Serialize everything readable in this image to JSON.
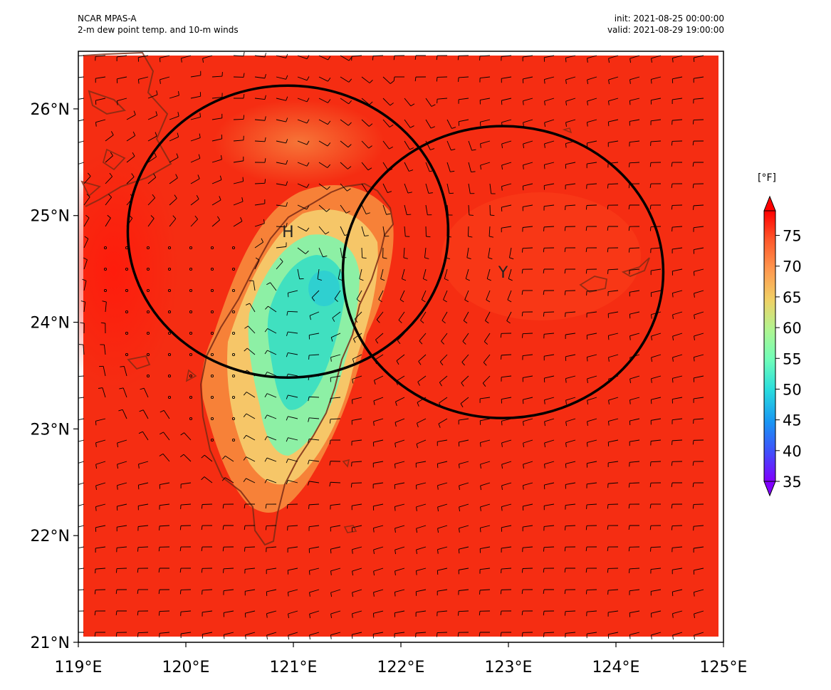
{
  "header": {
    "source": "NCAR MPAS-A",
    "description": "2-m dew point temp. and 10-m winds",
    "init": "init: 2021-08-25 00:00:00",
    "valid": "valid: 2021-08-29 19:00:00"
  },
  "map": {
    "lon_range": [
      119,
      125
    ],
    "lat_range": [
      21,
      26.5
    ],
    "x_ticks": [
      "119°E",
      "120°E",
      "121°E",
      "122°E",
      "123°E",
      "124°E",
      "125°E"
    ],
    "y_ticks": [
      "21°N",
      "22°N",
      "23°N",
      "24°N",
      "25°N",
      "26°N"
    ],
    "circles": [
      {
        "label": "H",
        "center_lon": 120.95,
        "center_lat": 24.85
      },
      {
        "label": "Y",
        "center_lon": 122.95,
        "center_lat": 24.47
      }
    ],
    "fill_color_background": "#f52d12",
    "fill_color_low": "#40e0c0"
  },
  "colorbar": {
    "unit": "[°F]",
    "ticks": [
      "35",
      "40",
      "45",
      "50",
      "55",
      "60",
      "65",
      "70",
      "75"
    ],
    "range": [
      35,
      79
    ],
    "colormap": [
      "#8000ff",
      "#4050fb",
      "#1996f3",
      "#2adddd",
      "#70feb9",
      "#b0f591",
      "#f0d166",
      "#ff9a50",
      "#ff5a2c",
      "#ff0000"
    ]
  }
}
